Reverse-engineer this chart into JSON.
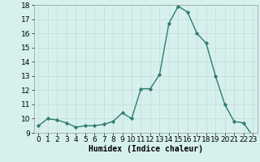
{
  "x": [
    0,
    1,
    2,
    3,
    4,
    5,
    6,
    7,
    8,
    9,
    10,
    11,
    12,
    13,
    14,
    15,
    16,
    17,
    18,
    19,
    20,
    21,
    22,
    23
  ],
  "y": [
    9.5,
    10.0,
    9.9,
    9.7,
    9.4,
    9.5,
    9.5,
    9.6,
    9.8,
    10.4,
    10.0,
    12.1,
    12.1,
    13.1,
    16.7,
    17.9,
    17.5,
    16.0,
    15.3,
    13.0,
    11.0,
    9.8,
    9.7,
    8.8
  ],
  "xlabel": "Humidex (Indice chaleur)",
  "line_color": "#2e7d6e",
  "marker": "D",
  "marker_size": 2.2,
  "bg_color": "#d6f0ee",
  "grid_color": "#c8dcd8",
  "ylim": [
    9,
    18
  ],
  "xlim": [
    -0.5,
    23.5
  ],
  "yticks": [
    9,
    10,
    11,
    12,
    13,
    14,
    15,
    16,
    17,
    18
  ],
  "xticks": [
    0,
    1,
    2,
    3,
    4,
    5,
    6,
    7,
    8,
    9,
    10,
    11,
    12,
    13,
    14,
    15,
    16,
    17,
    18,
    19,
    20,
    21,
    22,
    23
  ],
  "xlabel_fontsize": 7,
  "tick_fontsize": 6.5,
  "linewidth": 1.0
}
